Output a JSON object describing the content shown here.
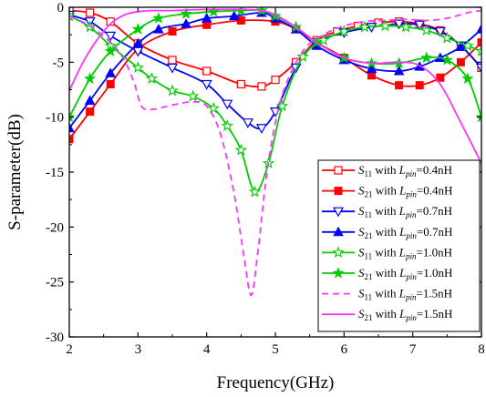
{
  "chart_data": {
    "type": "line",
    "xlabel": "Frequency(GHz)",
    "ylabel": "S-parameter(dB)",
    "xlim": [
      2,
      8
    ],
    "ylim": [
      -30,
      0
    ],
    "xticks": [
      2,
      3,
      4,
      5,
      6,
      7,
      8
    ],
    "yticks": [
      0,
      -5,
      -10,
      -15,
      -20,
      -25,
      -30
    ],
    "xtick_labels": [
      "2",
      "3",
      "4",
      "5",
      "6",
      "7",
      "8"
    ],
    "ytick_labels": [
      "0",
      "-5",
      "-10",
      "-15",
      "-20",
      "-25",
      "-30"
    ],
    "grid": false,
    "legend_position": "right",
    "series": [
      {
        "name": "S11 with Lpin=0.4nH",
        "label": {
          "base": "S",
          "sub": "11",
          "mid": " with ",
          "lbase": "L",
          "lsub": "pin",
          "tail": "=0.4nH"
        },
        "color": "#ff0000",
        "marker": "square-open",
        "dash": false,
        "x": [
          2.0,
          2.3,
          2.6,
          3.0,
          3.5,
          4.0,
          4.5,
          4.8,
          5.0,
          5.3,
          5.6,
          5.9,
          6.2,
          6.5,
          6.8,
          7.1,
          7.4,
          7.7,
          8.0
        ],
        "y": [
          -0.3,
          -0.5,
          -1.3,
          -3.3,
          -4.8,
          -5.8,
          -7.0,
          -7.2,
          -6.6,
          -5.0,
          -3.0,
          -2.2,
          -1.7,
          -1.4,
          -1.3,
          -1.5,
          -2.1,
          -3.5,
          -5.5
        ]
      },
      {
        "name": "S21 with Lpin=0.4nH",
        "label": {
          "base": "S",
          "sub": "21",
          "mid": " with ",
          "lbase": "L",
          "lsub": "pin",
          "tail": "=0.4nH"
        },
        "color": "#ff0000",
        "marker": "square-filled",
        "dash": false,
        "x": [
          2.0,
          2.3,
          2.6,
          3.0,
          3.5,
          4.0,
          4.5,
          5.0,
          5.3,
          5.6,
          6.0,
          6.4,
          6.8,
          7.1,
          7.4,
          7.7,
          8.0
        ],
        "y": [
          -12.0,
          -9.5,
          -7.0,
          -3.8,
          -2.2,
          -1.6,
          -1.2,
          -1.3,
          -2.0,
          -3.2,
          -4.6,
          -6.2,
          -7.1,
          -7.1,
          -6.4,
          -5.0,
          -3.2
        ]
      },
      {
        "name": "S11 with Lpin=0.7nH",
        "label": {
          "base": "S",
          "sub": "11",
          "mid": " with ",
          "lbase": "L",
          "lsub": "pin",
          "tail": "=0.7nH"
        },
        "color": "#0000ff",
        "marker": "triangle-down-open",
        "dash": false,
        "x": [
          2.0,
          2.3,
          2.6,
          3.0,
          3.5,
          4.0,
          4.3,
          4.6,
          4.8,
          5.0,
          5.3,
          5.6,
          6.0,
          6.4,
          6.8,
          7.1,
          7.4,
          7.7,
          8.0
        ],
        "y": [
          -0.7,
          -1.3,
          -2.6,
          -4.0,
          -5.5,
          -7.0,
          -8.8,
          -10.5,
          -11.0,
          -9.5,
          -5.5,
          -3.2,
          -2.3,
          -1.8,
          -1.5,
          -1.6,
          -2.2,
          -3.5,
          -5.5
        ]
      },
      {
        "name": "S21 with Lpin=0.7nH",
        "label": {
          "base": "S",
          "sub": "21",
          "mid": " with ",
          "lbase": "L",
          "lsub": "pin",
          "tail": "=0.7nH"
        },
        "color": "#0000ff",
        "marker": "triangle-up-filled",
        "dash": false,
        "x": [
          2.0,
          2.3,
          2.6,
          3.0,
          3.3,
          3.7,
          4.0,
          4.4,
          4.8,
          5.0,
          5.3,
          5.6,
          6.0,
          6.4,
          6.8,
          7.1,
          7.4,
          7.7,
          8.0
        ],
        "y": [
          -11.0,
          -8.5,
          -6.0,
          -3.3,
          -2.0,
          -1.5,
          -1.0,
          -0.8,
          -0.5,
          -1.0,
          -2.0,
          -3.5,
          -4.8,
          -5.6,
          -5.8,
          -5.4,
          -4.6,
          -3.6,
          -2.0
        ]
      },
      {
        "name": "S11 with Lpin=1.0nH",
        "label": {
          "base": "S",
          "sub": "11",
          "mid": " with ",
          "lbase": "L",
          "lsub": "pin",
          "tail": "=1.0nH"
        },
        "color": "#00cc00",
        "marker": "star-open",
        "dash": false,
        "x": [
          2.0,
          2.3,
          2.6,
          3.0,
          3.2,
          3.5,
          3.8,
          4.1,
          4.3,
          4.5,
          4.7,
          4.9,
          5.1,
          5.4,
          5.7,
          6.0,
          6.3,
          6.6,
          6.9,
          7.2,
          7.5,
          7.8,
          8.0
        ],
        "y": [
          -0.8,
          -1.8,
          -3.5,
          -5.5,
          -6.5,
          -7.6,
          -8.1,
          -9.2,
          -10.8,
          -13.0,
          -16.8,
          -14.2,
          -9.0,
          -4.5,
          -3.0,
          -2.2,
          -1.8,
          -1.7,
          -1.8,
          -2.1,
          -2.8,
          -3.5,
          -4.0
        ]
      },
      {
        "name": "S21 with Lpin=1.0nH",
        "label": {
          "base": "S",
          "sub": "21",
          "mid": " with ",
          "lbase": "L",
          "lsub": "pin",
          "tail": "=1.0nH"
        },
        "color": "#00cc00",
        "marker": "star-filled",
        "dash": false,
        "x": [
          2.0,
          2.3,
          2.6,
          3.0,
          3.3,
          3.7,
          4.1,
          4.5,
          4.8,
          5.0,
          5.3,
          5.6,
          6.0,
          6.4,
          6.8,
          7.2,
          7.5,
          7.8,
          8.0
        ],
        "y": [
          -10.0,
          -6.5,
          -4.0,
          -2.0,
          -1.0,
          -0.6,
          -0.4,
          -0.3,
          -0.3,
          -0.8,
          -1.8,
          -3.2,
          -4.6,
          -5.1,
          -5.1,
          -4.6,
          -4.8,
          -6.5,
          -10.0
        ]
      },
      {
        "name": "S11 with Lpin=1.5nH",
        "label": {
          "base": "S",
          "sub": "11",
          "mid": " with ",
          "lbase": "L",
          "lsub": "pin",
          "tail": "=1.5nH"
        },
        "color": "#ff33ff",
        "marker": "none",
        "dash": true,
        "x": [
          2.0,
          2.3,
          2.6,
          2.8,
          2.95,
          3.05,
          3.2,
          3.5,
          3.8,
          4.0,
          4.2,
          4.4,
          4.55,
          4.65,
          4.75,
          4.9,
          5.1,
          5.4,
          5.7,
          6.0,
          6.3,
          6.6,
          6.9,
          7.2,
          7.5,
          7.8,
          8.0
        ],
        "y": [
          -0.8,
          -1.7,
          -3.2,
          -4.8,
          -7.0,
          -9.0,
          -9.3,
          -8.9,
          -8.6,
          -9.0,
          -11.5,
          -17.0,
          -23.0,
          -26.2,
          -22.0,
          -14.0,
          -8.0,
          -4.0,
          -2.5,
          -1.7,
          -1.3,
          -1.2,
          -1.1,
          -1.2,
          -1.0,
          -0.5,
          -0.3
        ]
      },
      {
        "name": "S21 with Lpin=1.5nH",
        "label": {
          "base": "S",
          "sub": "21",
          "mid": " with ",
          "lbase": "L",
          "lsub": "pin",
          "tail": "=1.5nH"
        },
        "color": "#ff33ff",
        "marker": "none",
        "dash": false,
        "x": [
          2.0,
          2.2,
          2.4,
          2.6,
          2.8,
          3.0,
          3.2,
          3.5,
          4.0,
          4.5,
          4.8,
          5.0,
          5.3,
          5.6,
          6.0,
          6.4,
          6.8,
          7.1,
          7.4,
          7.7,
          8.0
        ],
        "y": [
          -7.6,
          -5.0,
          -3.0,
          -1.5,
          -0.7,
          -0.4,
          -0.3,
          -0.3,
          -0.2,
          -0.2,
          -0.3,
          -0.7,
          -1.8,
          -3.2,
          -4.6,
          -5.1,
          -5.0,
          -5.3,
          -7.0,
          -10.5,
          -14.2
        ]
      }
    ]
  }
}
